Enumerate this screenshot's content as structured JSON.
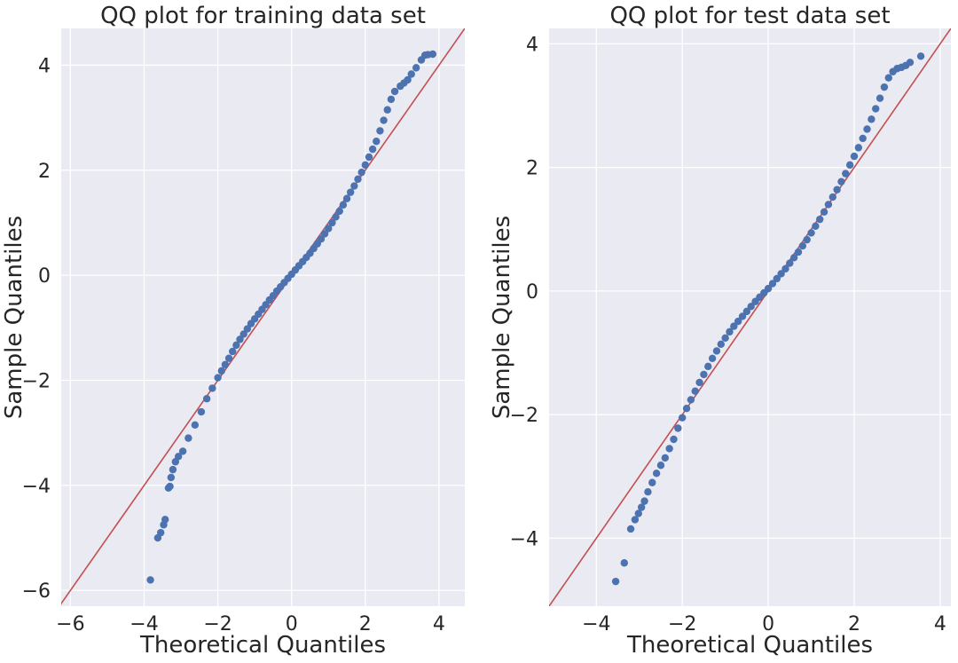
{
  "chart_data": [
    {
      "type": "scatter",
      "title": "QQ plot for training data set",
      "xlabel": "Theoretical Quantiles",
      "ylabel": "Sample Quantiles",
      "xlim": [
        -6.25,
        4.7
      ],
      "ylim": [
        -6.3,
        4.7
      ],
      "xticks": [
        -6,
        -4,
        -2,
        0,
        2,
        4
      ],
      "xtick_labels": [
        "−6",
        "−4",
        "−2",
        "0",
        "2",
        "4"
      ],
      "yticks": [
        -6,
        -4,
        -2,
        0,
        2,
        4
      ],
      "ytick_labels": [
        "−6",
        "−4",
        "−2",
        "0",
        "2",
        "4"
      ],
      "grid": true,
      "marker_color": "#4c72b0",
      "reference_line": {
        "slope": 1,
        "intercept": 0,
        "color": "#c44e52"
      },
      "series": [
        {
          "x": [
            -3.83,
            -3.63,
            -3.55,
            -3.47,
            -3.43,
            -3.34,
            -3.3,
            -3.27,
            -3.22,
            -3.15,
            -3.07,
            -2.95,
            -2.8,
            -2.62,
            -2.45,
            -2.3,
            -2.15,
            -2.0,
            -1.9,
            -1.8,
            -1.7,
            -1.6,
            -1.5,
            -1.4,
            -1.3,
            -1.2,
            -1.1,
            -1.0,
            -0.9,
            -0.8,
            -0.7,
            -0.6,
            -0.5,
            -0.4,
            -0.3,
            -0.2,
            -0.1,
            0.0,
            0.1,
            0.2,
            0.3,
            0.4,
            0.5,
            0.6,
            0.7,
            0.8,
            0.9,
            1.0,
            1.1,
            1.2,
            1.3,
            1.4,
            1.5,
            1.6,
            1.7,
            1.8,
            1.9,
            2.0,
            2.1,
            2.2,
            2.3,
            2.4,
            2.5,
            2.6,
            2.7,
            2.8,
            2.95,
            3.05,
            3.15,
            3.25,
            3.38,
            3.52,
            3.62,
            3.7,
            3.83
          ],
          "y": [
            -5.8,
            -5.0,
            -4.9,
            -4.75,
            -4.65,
            -4.05,
            -4.02,
            -3.85,
            -3.7,
            -3.55,
            -3.45,
            -3.35,
            -3.1,
            -2.85,
            -2.6,
            -2.35,
            -2.15,
            -1.95,
            -1.82,
            -1.7,
            -1.58,
            -1.45,
            -1.33,
            -1.22,
            -1.12,
            -1.02,
            -0.92,
            -0.83,
            -0.74,
            -0.65,
            -0.56,
            -0.47,
            -0.39,
            -0.3,
            -0.22,
            -0.14,
            -0.06,
            0.02,
            0.1,
            0.18,
            0.26,
            0.34,
            0.42,
            0.51,
            0.6,
            0.69,
            0.79,
            0.89,
            1.0,
            1.11,
            1.22,
            1.34,
            1.46,
            1.58,
            1.7,
            1.83,
            1.96,
            2.1,
            2.25,
            2.4,
            2.55,
            2.75,
            2.95,
            3.15,
            3.35,
            3.5,
            3.6,
            3.66,
            3.72,
            3.83,
            3.95,
            4.1,
            4.19,
            4.2,
            4.21
          ]
        }
      ]
    },
    {
      "type": "scatter",
      "title": "QQ plot for test data set",
      "xlabel": "Theoretical Quantiles",
      "ylabel": "Sample Quantiles",
      "xlim": [
        -5.1,
        4.25
      ],
      "ylim": [
        -5.1,
        4.25
      ],
      "xticks": [
        -4,
        -2,
        0,
        2,
        4
      ],
      "xtick_labels": [
        "−4",
        "−2",
        "0",
        "2",
        "4"
      ],
      "yticks": [
        -4,
        -2,
        0,
        2,
        4
      ],
      "ytick_labels": [
        "−4",
        "−2",
        "0",
        "2",
        "4"
      ],
      "grid": true,
      "marker_color": "#4c72b0",
      "reference_line": {
        "slope": 1,
        "intercept": 0,
        "color": "#c44e52"
      },
      "series": [
        {
          "x": [
            -3.55,
            -3.35,
            -3.2,
            -3.1,
            -3.02,
            -2.95,
            -2.88,
            -2.8,
            -2.7,
            -2.6,
            -2.5,
            -2.4,
            -2.3,
            -2.2,
            -2.1,
            -2.0,
            -1.9,
            -1.8,
            -1.7,
            -1.6,
            -1.5,
            -1.4,
            -1.3,
            -1.2,
            -1.1,
            -1.0,
            -0.9,
            -0.8,
            -0.7,
            -0.6,
            -0.5,
            -0.4,
            -0.3,
            -0.2,
            -0.1,
            0.0,
            0.1,
            0.2,
            0.3,
            0.4,
            0.5,
            0.6,
            0.7,
            0.8,
            0.9,
            1.0,
            1.1,
            1.2,
            1.3,
            1.4,
            1.5,
            1.6,
            1.7,
            1.8,
            1.9,
            2.0,
            2.1,
            2.2,
            2.3,
            2.4,
            2.5,
            2.6,
            2.7,
            2.8,
            2.9,
            3.0,
            3.1,
            3.2,
            3.3,
            3.55
          ],
          "y": [
            -4.7,
            -4.4,
            -3.85,
            -3.7,
            -3.6,
            -3.5,
            -3.4,
            -3.25,
            -3.1,
            -2.95,
            -2.82,
            -2.7,
            -2.55,
            -2.4,
            -2.22,
            -2.05,
            -1.9,
            -1.76,
            -1.62,
            -1.48,
            -1.35,
            -1.22,
            -1.09,
            -0.97,
            -0.86,
            -0.76,
            -0.66,
            -0.57,
            -0.49,
            -0.41,
            -0.33,
            -0.25,
            -0.17,
            -0.1,
            -0.03,
            0.04,
            0.12,
            0.2,
            0.28,
            0.36,
            0.45,
            0.54,
            0.63,
            0.73,
            0.83,
            0.94,
            1.05,
            1.16,
            1.28,
            1.4,
            1.52,
            1.64,
            1.77,
            1.9,
            2.04,
            2.18,
            2.32,
            2.47,
            2.62,
            2.78,
            2.95,
            3.12,
            3.3,
            3.45,
            3.55,
            3.6,
            3.62,
            3.65,
            3.7,
            3.8
          ]
        }
      ]
    }
  ]
}
